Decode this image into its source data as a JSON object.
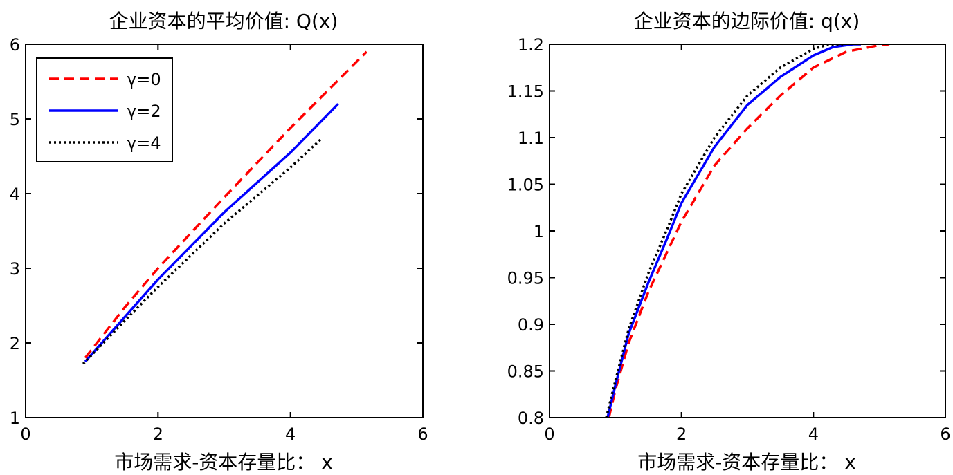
{
  "chart_data": [
    {
      "type": "line",
      "title": "企业资本的平均价值: Q(x)",
      "xlabel": "市场需求-资本存量比： x",
      "ylabel": "",
      "xlim": [
        0,
        6
      ],
      "ylim": [
        1,
        6
      ],
      "xticks": [
        "0",
        "2",
        "4",
        "6"
      ],
      "yticks": [
        "1",
        "2",
        "3",
        "4",
        "5",
        "6"
      ],
      "grid": false,
      "legend": "top-left",
      "series": [
        {
          "name": "γ=0",
          "color": "#ff0000",
          "dash": "dashed",
          "x": [
            0.9,
            1.5,
            2.0,
            3.0,
            4.0,
            5.15
          ],
          "y": [
            1.8,
            2.48,
            3.0,
            3.95,
            4.88,
            5.9
          ]
        },
        {
          "name": "γ=2",
          "color": "#0000ff",
          "dash": "solid",
          "x": [
            0.9,
            1.5,
            2.0,
            3.0,
            4.0,
            4.72
          ],
          "y": [
            1.75,
            2.35,
            2.85,
            3.75,
            4.55,
            5.2
          ]
        },
        {
          "name": "γ=4",
          "color": "#000000",
          "dash": "dotted",
          "x": [
            0.87,
            1.5,
            2.0,
            3.0,
            4.0,
            4.45
          ],
          "y": [
            1.72,
            2.3,
            2.75,
            3.6,
            4.35,
            4.72
          ]
        }
      ]
    },
    {
      "type": "line",
      "title": "企业资本的边际价值: q(x)",
      "xlabel": "市场需求-资本存量比： x",
      "ylabel": "",
      "xlim": [
        0,
        6
      ],
      "ylim": [
        0.8,
        1.2
      ],
      "xticks": [
        "0",
        "2",
        "4",
        "6"
      ],
      "yticks": [
        "0.8",
        "0.85",
        "0.9",
        "0.95",
        "1",
        "1.05",
        "1.1",
        "1.15",
        "1.2"
      ],
      "grid": false,
      "series": [
        {
          "name": "γ=0",
          "color": "#ff0000",
          "dash": "dashed",
          "x": [
            0.9,
            1.0,
            1.2,
            1.5,
            1.8,
            2.0,
            2.5,
            3.0,
            3.5,
            4.0,
            4.5,
            5.0,
            5.15
          ],
          "y": [
            0.8,
            0.83,
            0.88,
            0.935,
            0.98,
            1.01,
            1.07,
            1.11,
            1.145,
            1.175,
            1.192,
            1.199,
            1.2
          ]
        },
        {
          "name": "γ=2",
          "color": "#0000ff",
          "dash": "solid",
          "x": [
            0.88,
            1.0,
            1.2,
            1.5,
            1.8,
            2.0,
            2.5,
            3.0,
            3.5,
            4.0,
            4.3,
            4.6,
            4.72
          ],
          "y": [
            0.8,
            0.835,
            0.89,
            0.945,
            0.995,
            1.03,
            1.09,
            1.135,
            1.165,
            1.188,
            1.197,
            1.2,
            1.2
          ]
        },
        {
          "name": "γ=4",
          "color": "#000000",
          "dash": "dotted",
          "x": [
            0.86,
            1.0,
            1.2,
            1.5,
            1.8,
            2.0,
            2.5,
            3.0,
            3.5,
            4.0,
            4.2,
            4.4,
            4.45
          ],
          "y": [
            0.8,
            0.84,
            0.895,
            0.955,
            1.005,
            1.04,
            1.1,
            1.145,
            1.175,
            1.195,
            1.199,
            1.2,
            1.2
          ]
        }
      ]
    }
  ]
}
